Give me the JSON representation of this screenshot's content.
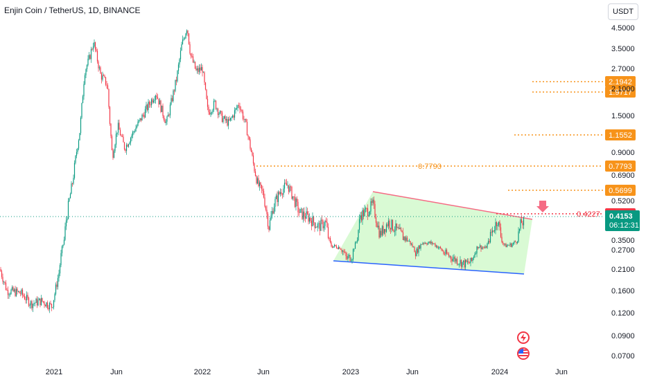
{
  "header": {
    "symbol_title": "Enjin Coin / TetherUS, 1D, BINANCE",
    "currency": "USDT"
  },
  "chart_data": {
    "type": "candlestick",
    "y_scale": "log",
    "y_ticks": [
      "4.5000",
      "3.5000",
      "2.7000",
      "2.1000",
      "1.5000",
      "0.9000",
      "0.6900",
      "0.5200",
      "0.3500",
      "0.2700",
      "0.2100",
      "0.1600",
      "0.1200",
      "0.0900",
      "0.0700"
    ],
    "x_ticks": [
      "2021",
      "Jun",
      "2022",
      "Jun",
      "2023",
      "Jun",
      "2024",
      "Jun"
    ],
    "price_levels": [
      {
        "value": "2.1942",
        "color": "#f7931a"
      },
      {
        "value": "1.9717",
        "color": "#f7931a"
      },
      {
        "value": "1.1552",
        "color": "#f7931a"
      },
      {
        "value": "0.7793",
        "color": "#f7931a",
        "inline_label": "0.7793"
      },
      {
        "value": "0.5699",
        "color": "#f7931a"
      },
      {
        "value": "0.4227",
        "color": "#f23645",
        "inline_label": "0.4227"
      }
    ],
    "current_price": {
      "value": "0.4153",
      "countdown": "06:12:31",
      "color": "#089981"
    },
    "pattern": "falling channel",
    "colors": {
      "up": "#089981",
      "down": "#f23645",
      "channel_fill": "#b9f5b0",
      "upper_line": "#f56b84",
      "lower_line": "#2962ff"
    }
  }
}
